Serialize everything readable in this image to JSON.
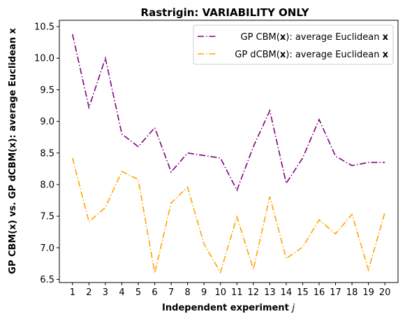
{
  "chart_data": {
    "type": "line",
    "title": "Rastrigin: VARIABILITY ONLY",
    "xlabel": "Independent experiment j",
    "ylabel": "GP CBM(x) vs. GP dCBM(x): average Euclidean x",
    "x": [
      1,
      2,
      3,
      4,
      5,
      6,
      7,
      8,
      9,
      10,
      11,
      12,
      13,
      14,
      15,
      16,
      17,
      18,
      19,
      20
    ],
    "xticks": [
      "1",
      "2",
      "3",
      "4",
      "5",
      "6",
      "7",
      "8",
      "9",
      "10",
      "11",
      "12",
      "13",
      "14",
      "15",
      "16",
      "17",
      "18",
      "19",
      "20"
    ],
    "yticks": [
      "6.5",
      "7.0",
      "7.5",
      "8.0",
      "8.5",
      "9.0",
      "9.5",
      "10.0",
      "10.5"
    ],
    "ylim": [
      6.45,
      10.6
    ],
    "xlim": [
      0.2,
      20.8
    ],
    "legend_position": "top-right",
    "grid": false,
    "series": [
      {
        "name": "GP CBM(x): average Euclidean x",
        "color": "#800080",
        "linestyle": "dashdot",
        "values": [
          10.38,
          9.22,
          10.0,
          8.8,
          8.6,
          8.9,
          8.2,
          8.5,
          8.46,
          8.42,
          7.91,
          8.6,
          9.17,
          8.02,
          8.42,
          9.03,
          8.45,
          8.3,
          8.35,
          8.35
        ]
      },
      {
        "name": "GP dCBM(x): average Euclidean x",
        "color": "#FFA500",
        "linestyle": "dashdot",
        "values": [
          8.42,
          7.41,
          7.64,
          8.21,
          8.08,
          6.6,
          7.71,
          7.96,
          7.06,
          6.61,
          7.49,
          6.66,
          7.81,
          6.83,
          7.01,
          7.44,
          7.22,
          7.53,
          6.65,
          7.56
        ]
      }
    ]
  }
}
